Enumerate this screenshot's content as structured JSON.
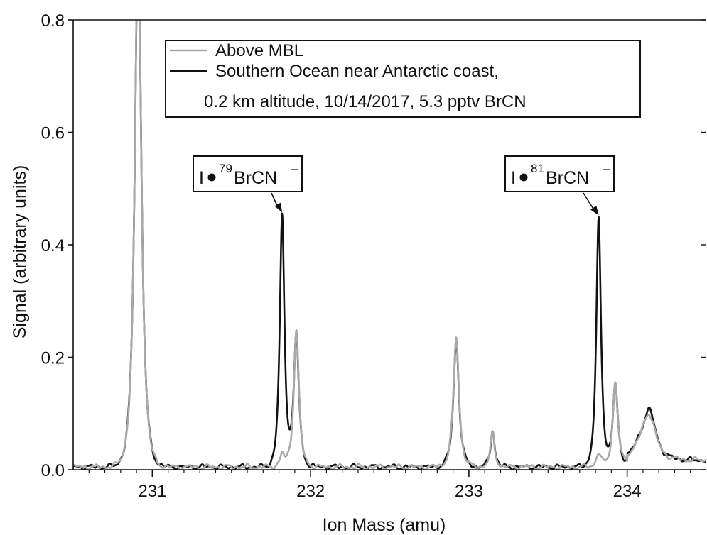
{
  "chart_data": {
    "type": "line",
    "title": "",
    "xlabel": "Ion Mass (amu)",
    "ylabel": "Signal (arbitrary units)",
    "xlim": [
      230.5,
      234.5
    ],
    "ylim": [
      0,
      0.8
    ],
    "xticks": [
      231,
      232,
      233,
      234
    ],
    "xtick_labels": [
      "231",
      "232",
      "233",
      "234"
    ],
    "yticks": [
      0,
      0.2,
      0.4,
      0.6,
      0.8
    ],
    "ytick_labels": [
      "0.0",
      "0.2",
      "0.4",
      "0.6",
      "0.8"
    ],
    "grid": false,
    "legend_position": "top-center",
    "series": [
      {
        "name": "Above MBL",
        "legend_line2": "",
        "color": "#a9a9a9",
        "baseline": 0.005,
        "peaks": [
          {
            "x": 230.91,
            "y": 0.95,
            "w": 0.028
          },
          {
            "x": 231.82,
            "y": 0.022,
            "w": 0.02
          },
          {
            "x": 231.91,
            "y": 0.245,
            "w": 0.022
          },
          {
            "x": 232.92,
            "y": 0.23,
            "w": 0.024
          },
          {
            "x": 233.15,
            "y": 0.06,
            "w": 0.018
          },
          {
            "x": 233.82,
            "y": 0.025,
            "w": 0.02
          },
          {
            "x": 233.925,
            "y": 0.15,
            "w": 0.022
          },
          {
            "x": 234.14,
            "y": 0.068,
            "w": 0.055
          }
        ]
      },
      {
        "name": "Southern Ocean near Antarctic coast,",
        "legend_line2": "0.2 km altitude, 10/14/2017, 5.3 pptv BrCN",
        "color": "#111111",
        "baseline": 0.005,
        "peaks": [
          {
            "x": 230.91,
            "y": 0.95,
            "w": 0.028
          },
          {
            "x": 231.82,
            "y": 0.445,
            "w": 0.02
          },
          {
            "x": 231.91,
            "y": 0.235,
            "w": 0.022
          },
          {
            "x": 232.92,
            "y": 0.225,
            "w": 0.024
          },
          {
            "x": 233.15,
            "y": 0.065,
            "w": 0.018
          },
          {
            "x": 233.82,
            "y": 0.44,
            "w": 0.02
          },
          {
            "x": 233.925,
            "y": 0.145,
            "w": 0.022
          },
          {
            "x": 234.14,
            "y": 0.075,
            "w": 0.055
          }
        ]
      }
    ],
    "annotations": [
      {
        "prefix": "I",
        "isotope": "79",
        "label": "BrCN",
        "charge": "–",
        "target_x": 231.82,
        "target_y": 0.45
      },
      {
        "prefix": "I",
        "isotope": "81",
        "label": "BrCN",
        "charge": "–",
        "target_x": 233.82,
        "target_y": 0.445
      }
    ]
  }
}
